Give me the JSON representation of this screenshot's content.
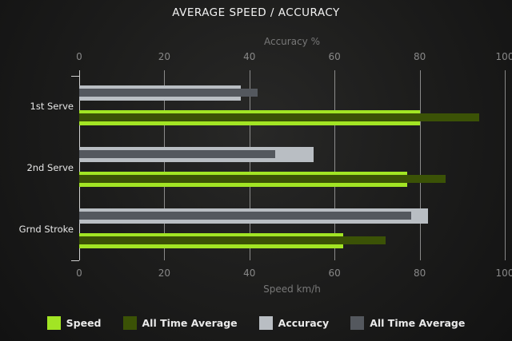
{
  "title": "AVERAGE SPEED / ACCURACY",
  "chart_data": {
    "type": "bar",
    "orientation": "horizontal",
    "grid": true,
    "legend_position": "bottom",
    "categories": [
      "1st Serve",
      "2nd Serve",
      "Grnd Stroke"
    ],
    "top_axis": {
      "label": "Accuracy %",
      "range": [
        0,
        100
      ],
      "ticks": [
        0,
        20,
        40,
        60,
        80,
        100
      ]
    },
    "bottom_axis": {
      "label": "Speed km/h",
      "range": [
        0,
        100
      ],
      "ticks": [
        0,
        20,
        40,
        60,
        80,
        100
      ]
    },
    "series": [
      {
        "name": "Speed",
        "axis": "bottom",
        "color": "#a2e524",
        "values": [
          80,
          77,
          62
        ]
      },
      {
        "name": "All Time Average",
        "axis": "bottom",
        "color": "#3b5206",
        "values": [
          94,
          86,
          72
        ]
      },
      {
        "name": "Accuracy",
        "axis": "top",
        "color": "#b9bec3",
        "values": [
          38,
          55,
          82
        ]
      },
      {
        "name": "All Time Average",
        "axis": "top",
        "color": "#54585e",
        "values": [
          42,
          46,
          78
        ]
      }
    ],
    "legend": [
      {
        "label": "Speed",
        "color": "#a2e524"
      },
      {
        "label": "All Time Average",
        "color": "#3b5206"
      },
      {
        "label": "Accuracy",
        "color": "#b9bec3"
      },
      {
        "label": "All Time Average",
        "color": "#54585e"
      }
    ]
  },
  "colors": {
    "background_center": "#282827",
    "background_edge": "#121212",
    "title_text": "#f2f2f2",
    "axis_text": "#888888",
    "gridline": "#cdcdcd",
    "category_text": "#e6e6e6"
  }
}
